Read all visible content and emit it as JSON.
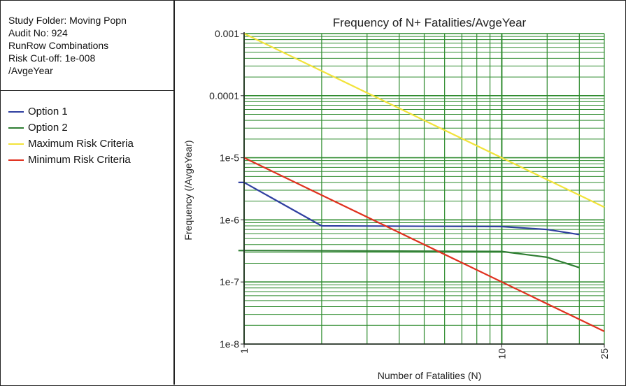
{
  "info": {
    "lines": [
      "Study Folder: Moving Popn",
      "Audit No: 924",
      "RunRow Combinations",
      "Risk Cut-off: 1e-008",
      "/AvgeYear"
    ]
  },
  "legend": {
    "items": [
      {
        "label": "Option 1",
        "color": "#2f3fa0"
      },
      {
        "label": "Option 2",
        "color": "#2e7d32"
      },
      {
        "label": "Maximum Risk Criteria",
        "color": "#f2e33a"
      },
      {
        "label": "Minimum Risk Criteria",
        "color": "#e0301e"
      }
    ]
  },
  "chart_data": {
    "type": "line",
    "title": "Frequency of N+ Fatalities/AvgeYear",
    "xlabel": "Number of Fatalities (N)",
    "ylabel": "Frequency (/AvgeYear)",
    "x_scale": "log",
    "y_scale": "log",
    "xlim": [
      1,
      25
    ],
    "ylim": [
      1e-08,
      0.001
    ],
    "x_ticks": [
      {
        "value": 1,
        "label": "1"
      },
      {
        "value": 10,
        "label": "10"
      },
      {
        "value": 25,
        "label": "25"
      }
    ],
    "y_ticks": [
      {
        "value": 0.001,
        "label": "0.001"
      },
      {
        "value": 0.0001,
        "label": "0.0001"
      },
      {
        "value": 1e-05,
        "label": "1e-5"
      },
      {
        "value": 1e-06,
        "label": "1e-6"
      },
      {
        "value": 1e-07,
        "label": "1e-7"
      },
      {
        "value": 1e-08,
        "label": "1e-8"
      }
    ],
    "grid": true,
    "grid_color": "#2e8b2e",
    "series": [
      {
        "name": "Option 1",
        "color": "#2f3fa0",
        "points": [
          [
            0.95,
            4e-06
          ],
          [
            1,
            4e-06
          ],
          [
            2,
            8e-07
          ],
          [
            10,
            7.8e-07
          ],
          [
            15,
            7e-07
          ],
          [
            20,
            5.8e-07
          ]
        ]
      },
      {
        "name": "Option 2",
        "color": "#2e7d32",
        "points": [
          [
            0.95,
            3.2e-07
          ],
          [
            10,
            3.1e-07
          ],
          [
            15,
            2.5e-07
          ],
          [
            20,
            1.7e-07
          ]
        ]
      },
      {
        "name": "Maximum Risk Criteria",
        "color": "#f2e33a",
        "points": [
          [
            1,
            0.001
          ],
          [
            25,
            1.6e-06
          ]
        ]
      },
      {
        "name": "Minimum Risk Criteria",
        "color": "#e0301e",
        "points": [
          [
            1,
            1e-05
          ],
          [
            25,
            1.6e-08
          ]
        ]
      }
    ]
  }
}
